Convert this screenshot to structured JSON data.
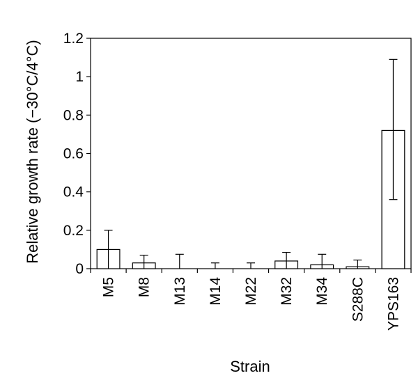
{
  "chart_data": {
    "type": "bar",
    "title": "",
    "xlabel": "Strain",
    "ylabel": "Relative growth rate (−30°C/4°C)",
    "categories": [
      "M5",
      "M8",
      "M13",
      "M14",
      "M22",
      "M32",
      "M34",
      "S288C",
      "YPS163"
    ],
    "values": [
      0.1,
      0.03,
      0.0,
      0.0,
      0.0,
      0.04,
      0.02,
      0.01,
      0.72
    ],
    "error_upper": [
      0.2,
      0.07,
      0.075,
      0.03,
      0.03,
      0.085,
      0.075,
      0.045,
      1.09
    ],
    "error_lower": [
      0.0,
      0.0,
      0.0,
      0.0,
      0.0,
      0.0,
      0.0,
      0.0,
      0.36
    ],
    "ylim": [
      0,
      1.2
    ],
    "yticks": [
      "0",
      "0.2",
      "0.4",
      "0.6",
      "0.8",
      "1",
      "1.2"
    ],
    "grid": false,
    "colors": {
      "bar_fill": "#ffffff",
      "bar_stroke": "#000000",
      "axis": "#000000"
    }
  }
}
